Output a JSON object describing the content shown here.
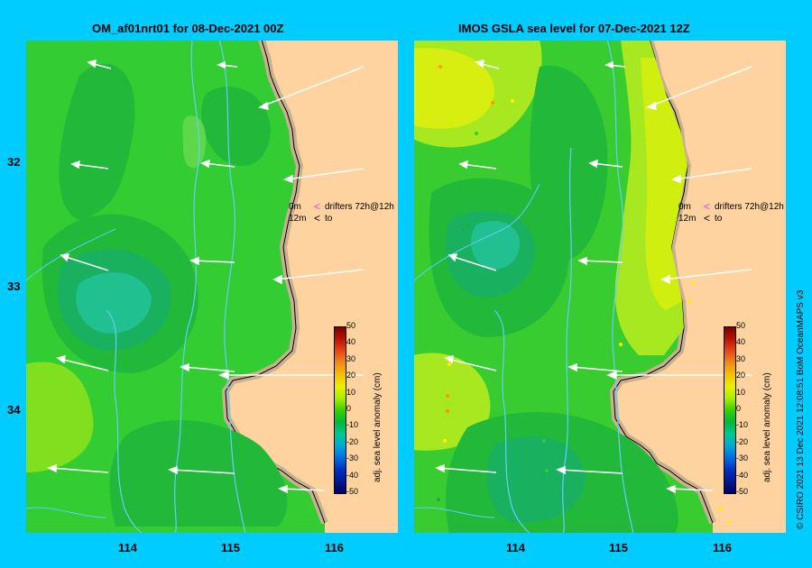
{
  "panels": [
    {
      "id": "left",
      "title": "OM_af01nrt01 for 08-Dec-2021 00Z"
    },
    {
      "id": "right",
      "title": "IMOS GSLA sea level  for 07-Dec-2021 12Z"
    }
  ],
  "axes": {
    "lat_ticks": [
      "32",
      "33",
      "34"
    ],
    "lon_ticks": [
      "114",
      "115",
      "116"
    ]
  },
  "legend": {
    "line1_depth": "0m",
    "line1_text": "drifters 72h@12h",
    "line2_depth": "12m",
    "line2_text": "to",
    "marker1_color": "#ff33ff",
    "marker2_color": "#000000"
  },
  "colorbar": {
    "title": "adj. sea level anomaly (cm)",
    "ticks": [
      "50",
      "40",
      "30",
      "20",
      "10",
      "0",
      "-10",
      "-20",
      "-30",
      "-40",
      "-50"
    ],
    "colors": [
      "#7a0000",
      "#b81400",
      "#e8461a",
      "#f08a1a",
      "#f4c200",
      "#e8f000",
      "#a8ee00",
      "#38d000",
      "#00b83a",
      "#00c890",
      "#00a8d8",
      "#0070e0",
      "#0030c0",
      "#001890",
      "#000060"
    ]
  },
  "credit": "© CSIRO 2021   13 Dec 2021 12:08:51 BoM OceanMAPS v3",
  "colors": {
    "background": "#00ccff",
    "land": "#ffd3a0",
    "shore": "#c8b090",
    "ocean_green": "#33cc33"
  }
}
